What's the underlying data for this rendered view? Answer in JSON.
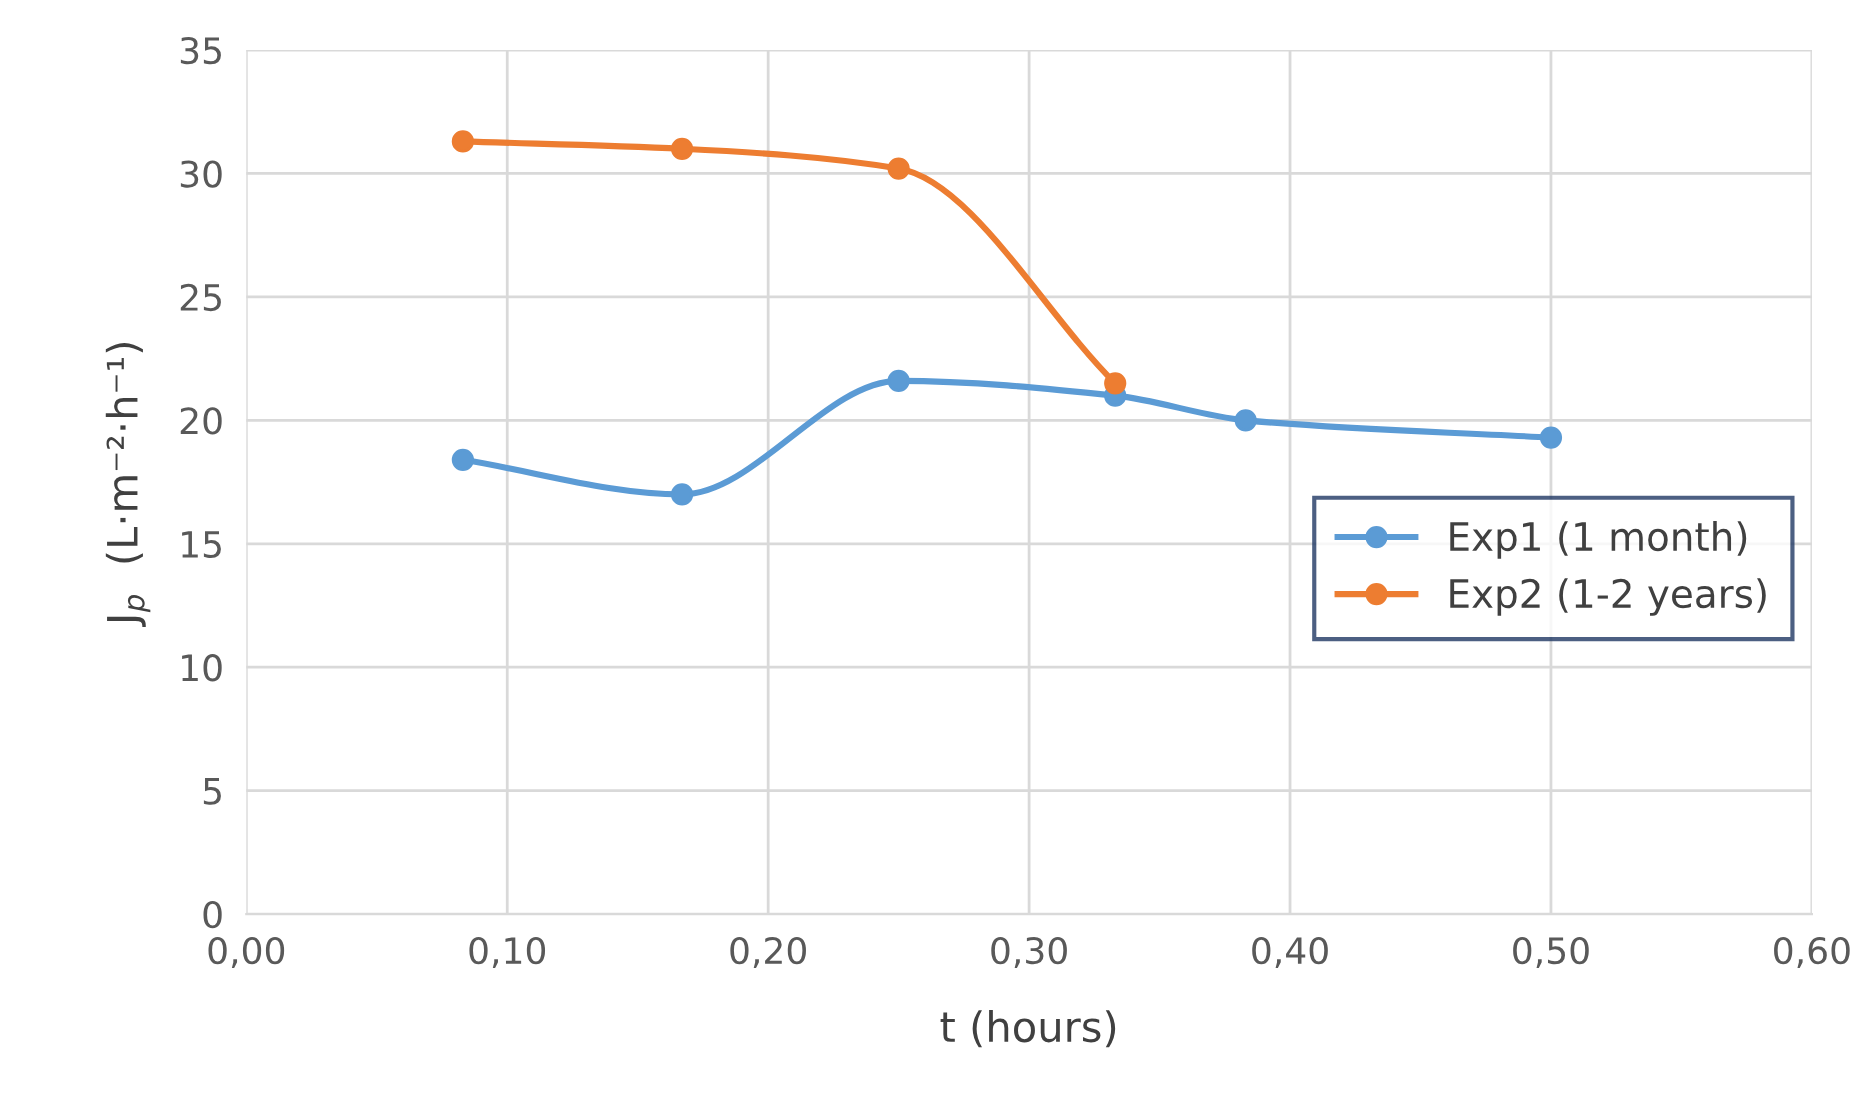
{
  "chart_data": {
    "type": "line",
    "xlabel": "t (hours)",
    "ylabel": "J$_{p}$  (L·m⁻²·h⁻¹)",
    "series": [
      {
        "name": "Exp1 (1 month)",
        "color": "#5b9bd5",
        "x": [
          0.083,
          0.167,
          0.25,
          0.333,
          0.383,
          0.5
        ],
        "values": [
          18.4,
          17.0,
          21.6,
          21.0,
          20.0,
          19.3
        ]
      },
      {
        "name": "Exp2 (1-2 years)",
        "color": "#ed7d31",
        "x": [
          0.083,
          0.167,
          0.25,
          0.333
        ],
        "values": [
          31.3,
          31.0,
          30.2,
          21.5
        ]
      }
    ],
    "xlim": [
      0,
      0.6
    ],
    "xticks": [
      {
        "value": 0,
        "label": "0,00"
      },
      {
        "value": 0.1,
        "label": "0,10"
      },
      {
        "value": 0.2,
        "label": "0,20"
      },
      {
        "value": 0.3,
        "label": "0,30"
      },
      {
        "value": 0.4,
        "label": "0,40"
      },
      {
        "value": 0.5,
        "label": "0,50"
      },
      {
        "value": 0.6,
        "label": "0,60"
      }
    ],
    "ylim": [
      0,
      35
    ],
    "yticks": [
      0,
      5,
      10,
      15,
      20,
      25,
      30,
      35
    ],
    "grid": true,
    "legend": "right",
    "marker": "circle",
    "line_style": "solid"
  }
}
